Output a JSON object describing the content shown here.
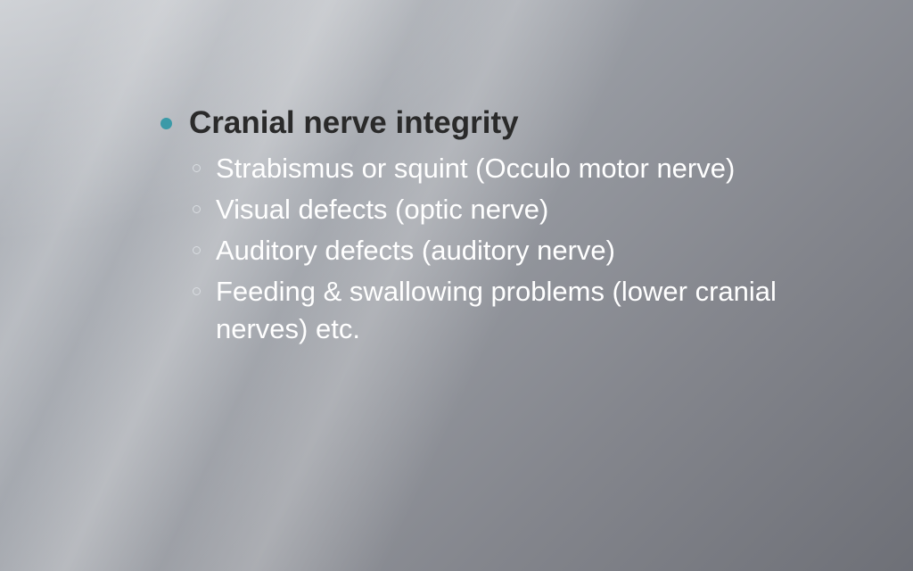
{
  "colors": {
    "mainBullet": "#3b9aa8",
    "mainText": "#2a2a2a",
    "subBullet": "#d9dde1",
    "subText": "#ffffff"
  },
  "main": {
    "title": "Cranial nerve integrity",
    "subs": [
      "Strabismus or squint (Occulo motor nerve)",
      "Visual defects (optic nerve)",
      "Auditory defects (auditory nerve)",
      "Feeding & swallowing problems (lower cranial nerves) etc."
    ]
  }
}
